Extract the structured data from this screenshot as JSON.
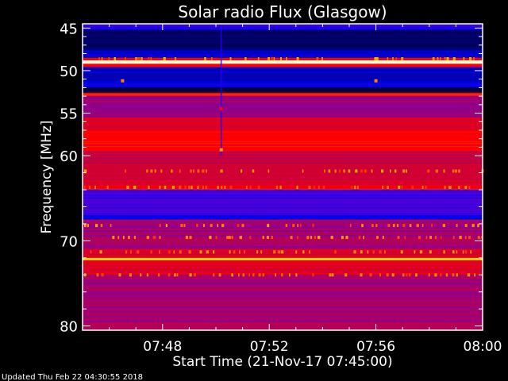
{
  "chart_data": {
    "type": "heatmap",
    "title": "Solar radio Flux (Glasgow)",
    "xlabel": "Start Time (21-Nov-17 07:45:00)",
    "ylabel": "Frequency [MHz]",
    "xlim": [
      "07:45",
      "08:00"
    ],
    "ylim": [
      80.5,
      44.5
    ],
    "x_ticks": [
      "07:48",
      "07:52",
      "07:56",
      "08:00"
    ],
    "y_ticks": [
      "45",
      "50",
      "55",
      "60",
      "70",
      "80"
    ],
    "colormap": [
      "#000000",
      "#000064",
      "#0000ff",
      "#6400c8",
      "#c8003c",
      "#ff0000",
      "#ff8000",
      "#ffdc00",
      "#ffffff"
    ],
    "bands": [
      {
        "from": 44.5,
        "to": 45.2,
        "intensity": 0.3
      },
      {
        "from": 45.2,
        "to": 47.5,
        "intensity": 0.12
      },
      {
        "from": 47.5,
        "to": 48.5,
        "intensity": 0.2
      },
      {
        "from": 48.5,
        "to": 48.8,
        "intensity": 0.6
      },
      {
        "from": 48.8,
        "to": 49.2,
        "intensity": 0.97
      },
      {
        "from": 49.2,
        "to": 49.6,
        "intensity": 0.6
      },
      {
        "from": 49.6,
        "to": 51.5,
        "intensity": 0.2
      },
      {
        "from": 51.5,
        "to": 52.0,
        "intensity": 0.24
      },
      {
        "from": 52.0,
        "to": 52.6,
        "intensity": 0.08
      },
      {
        "from": 52.6,
        "to": 53.0,
        "intensity": 0.64
      },
      {
        "from": 53.0,
        "to": 55.5,
        "intensity": 0.44
      },
      {
        "from": 55.5,
        "to": 57.0,
        "intensity": 0.54
      },
      {
        "from": 57.0,
        "to": 59.5,
        "intensity": 0.62
      },
      {
        "from": 59.5,
        "to": 62.0,
        "intensity": 0.5
      },
      {
        "from": 62.0,
        "to": 63.5,
        "intensity": 0.54
      },
      {
        "from": 63.5,
        "to": 64.0,
        "intensity": 0.6
      },
      {
        "from": 64.0,
        "to": 67.0,
        "intensity": 0.33
      },
      {
        "from": 67.0,
        "to": 67.5,
        "intensity": 0.25
      },
      {
        "from": 67.5,
        "to": 71.0,
        "intensity": 0.45
      },
      {
        "from": 71.0,
        "to": 72.0,
        "intensity": 0.54
      },
      {
        "from": 72.0,
        "to": 72.3,
        "intensity": 0.86
      },
      {
        "from": 72.3,
        "to": 74.0,
        "intensity": 0.55
      },
      {
        "from": 74.0,
        "to": 77.0,
        "intensity": 0.45
      },
      {
        "from": 77.0,
        "to": 80.5,
        "intensity": 0.46
      }
    ],
    "interference_lines_mhz": [
      48.6,
      61.8,
      63.7,
      68.2,
      69.6,
      71.3,
      74.0
    ],
    "spots": [
      {
        "time": "07:46:30",
        "freq": 51.2,
        "intensity": 0.75
      },
      {
        "time": "07:56:00",
        "freq": 51.2,
        "intensity": 0.75
      },
      {
        "time": "07:50:12",
        "freq": 54.5,
        "intensity": 0.62
      },
      {
        "time": "07:50:12",
        "freq": 59.3,
        "intensity": 0.8
      }
    ],
    "vertical_features": [
      {
        "time": "07:50:12",
        "from": 44.5,
        "to": 60.0,
        "intensity": 0.3
      }
    ]
  },
  "footer": {
    "updated": "Updated Thu Feb 22 04:30:55 2018"
  }
}
